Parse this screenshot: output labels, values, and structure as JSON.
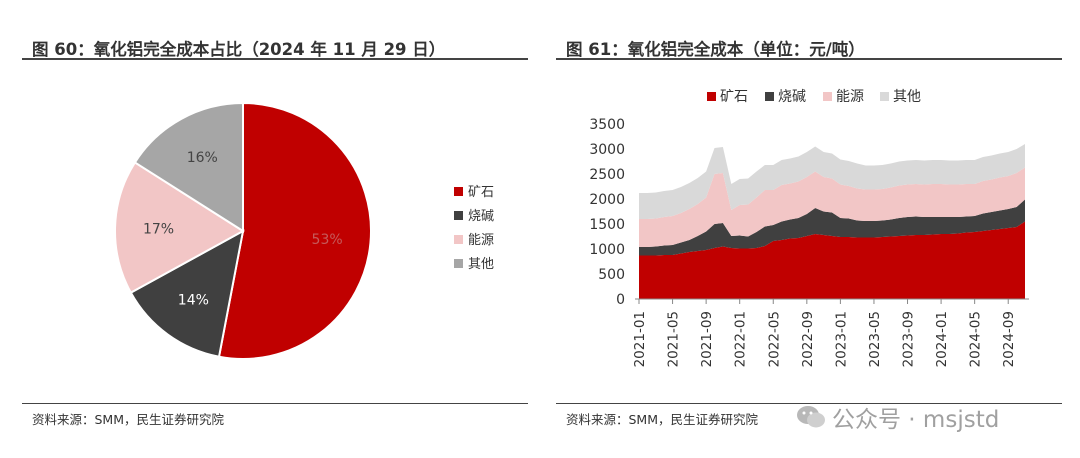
{
  "left": {
    "title": "图 60：氧化铝完全成本占比（2024 年 11 月 29 日）",
    "source": "资料来源：SMM，民生证券研究院"
  },
  "right": {
    "title": "图 61：氧化铝完全成本（单位：元/吨）",
    "source": "资料来源：SMM，民生证券研究院"
  },
  "watermark": {
    "text": "公众号 · msjstd",
    "icon": "wechat-icon"
  },
  "chart_data": [
    {
      "type": "pie",
      "categories": [
        "矿石",
        "烧碱",
        "能源",
        "其他"
      ],
      "values": [
        53,
        14,
        17,
        16
      ],
      "data_labels": [
        "53%",
        "14%",
        "17%",
        "16%"
      ],
      "colors": [
        "#c00000",
        "#404040",
        "#f2c6c6",
        "#a6a6a6"
      ],
      "legend_position": "right"
    },
    {
      "type": "area",
      "stacked": true,
      "x": [
        "2021-01",
        "2021-02",
        "2021-03",
        "2021-04",
        "2021-05",
        "2021-06",
        "2021-07",
        "2021-08",
        "2021-09",
        "2021-10",
        "2021-11",
        "2021-12",
        "2022-01",
        "2022-02",
        "2022-03",
        "2022-04",
        "2022-05",
        "2022-06",
        "2022-07",
        "2022-08",
        "2022-09",
        "2022-10",
        "2022-11",
        "2022-12",
        "2023-01",
        "2023-02",
        "2023-03",
        "2023-04",
        "2023-05",
        "2023-06",
        "2023-07",
        "2023-08",
        "2023-09",
        "2023-10",
        "2023-11",
        "2023-12",
        "2024-01",
        "2024-02",
        "2024-03",
        "2024-04",
        "2024-05",
        "2024-06",
        "2024-07",
        "2024-08",
        "2024-09",
        "2024-10",
        "2024-11"
      ],
      "xtick_labels": [
        "2021-01",
        "2021-05",
        "2021-09",
        "2022-01",
        "2022-05",
        "2022-09",
        "2023-01",
        "2023-05",
        "2023-09",
        "2024-01",
        "2024-05",
        "2024-09"
      ],
      "series": [
        {
          "name": "矿石",
          "color": "#c00000",
          "values": [
            870,
            870,
            870,
            880,
            880,
            910,
            940,
            960,
            980,
            1020,
            1050,
            1020,
            1010,
            1010,
            1020,
            1060,
            1160,
            1180,
            1210,
            1220,
            1260,
            1300,
            1280,
            1260,
            1240,
            1240,
            1230,
            1230,
            1230,
            1240,
            1250,
            1260,
            1270,
            1280,
            1280,
            1290,
            1300,
            1300,
            1310,
            1330,
            1340,
            1360,
            1380,
            1400,
            1420,
            1440,
            1550
          ]
        },
        {
          "name": "烧碱",
          "color": "#404040",
          "values": [
            170,
            170,
            180,
            190,
            200,
            220,
            240,
            300,
            370,
            480,
            470,
            240,
            260,
            240,
            320,
            390,
            320,
            370,
            380,
            400,
            440,
            520,
            470,
            470,
            380,
            370,
            340,
            330,
            330,
            330,
            340,
            360,
            370,
            370,
            360,
            350,
            340,
            340,
            330,
            320,
            320,
            350,
            360,
            370,
            380,
            400,
            440
          ]
        },
        {
          "name": "能源",
          "color": "#f2c6c6",
          "values": [
            560,
            560,
            560,
            570,
            580,
            590,
            620,
            640,
            680,
            1000,
            1000,
            520,
            610,
            640,
            690,
            730,
            700,
            730,
            720,
            730,
            740,
            730,
            690,
            680,
            670,
            650,
            640,
            630,
            630,
            630,
            640,
            650,
            650,
            650,
            650,
            660,
            660,
            650,
            650,
            650,
            640,
            650,
            650,
            660,
            660,
            680,
            640
          ]
        },
        {
          "name": "其他",
          "color": "#d9d9d9",
          "values": [
            520,
            520,
            520,
            520,
            520,
            520,
            520,
            520,
            520,
            520,
            520,
            520,
            520,
            520,
            520,
            500,
            500,
            500,
            500,
            500,
            500,
            500,
            500,
            500,
            500,
            500,
            500,
            480,
            480,
            480,
            480,
            480,
            480,
            480,
            480,
            480,
            480,
            480,
            480,
            480,
            480,
            480,
            480,
            480,
            480,
            480,
            470
          ]
        }
      ],
      "ylim": [
        0,
        3500
      ],
      "yticks": [
        0,
        500,
        1000,
        1500,
        2000,
        2500,
        3000,
        3500
      ],
      "legend_position": "top",
      "grid": false
    }
  ]
}
